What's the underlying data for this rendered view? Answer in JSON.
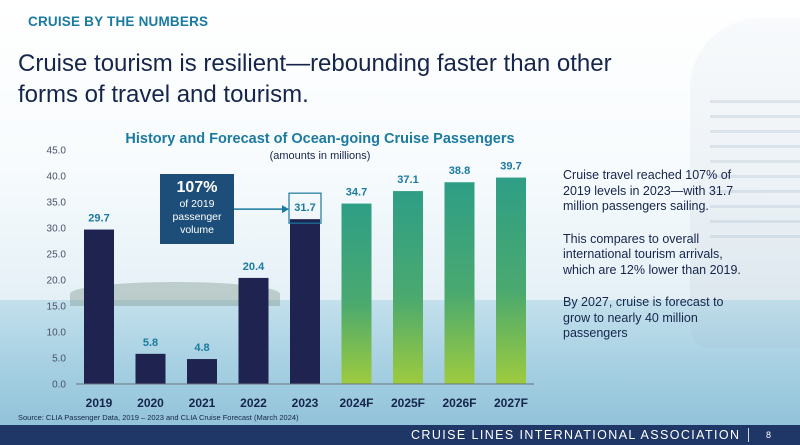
{
  "kicker": "CRUISE BY THE NUMBERS",
  "headline": "Cruise tourism is resilient—rebounding faster than other forms of travel and tourism.",
  "callout": {
    "percent": "107%",
    "line1": "of 2019",
    "line2": "passenger",
    "line3": "volume"
  },
  "side_notes": [
    "Cruise travel reached 107% of 2019 levels in 2023—with 31.7 million passengers sailing.",
    "This compares to overall international tourism arrivals, which are 12% lower than 2019.",
    "By 2027, cruise is forecast to grow to nearly 40 million passengers"
  ],
  "source": "Source: CLIA Passenger Data, 2019 – 2023 and CLIA Cruise Forecast (March 2024)",
  "footer": {
    "org": "CRUISE LINES INTERNATIONAL ASSOCIATION",
    "page": "8"
  },
  "colors": {
    "navy": "#16254b",
    "teal": "#1a7aa0",
    "bar_historic": "#1e2350",
    "callout_bg": "#1d4e79",
    "gradient_top": "#2e9e86",
    "gradient_mid": "#4aa96f",
    "gradient_bottom": "#9ecb3e",
    "footer_bg": "#1f3766"
  },
  "chart_data": {
    "type": "bar",
    "title": "History and Forecast of Ocean-going Cruise Passengers",
    "subtitle": "(amounts in millions)",
    "categories": [
      "2019",
      "2020",
      "2021",
      "2022",
      "2023",
      "2024F",
      "2025F",
      "2026F",
      "2027F"
    ],
    "values": [
      29.7,
      5.8,
      4.8,
      20.4,
      31.7,
      34.7,
      37.1,
      38.8,
      39.7
    ],
    "value_labels": [
      "29.7",
      "5.8",
      "4.8",
      "20.4",
      "31.7",
      "34.7",
      "37.1",
      "38.8",
      "39.7"
    ],
    "forecast": [
      false,
      false,
      false,
      false,
      false,
      true,
      true,
      true,
      true
    ],
    "highlighted_category": "2023",
    "ylim": [
      0,
      45
    ],
    "yticks": [
      "0.0",
      "5.0",
      "10.0",
      "15.0",
      "20.0",
      "25.0",
      "30.0",
      "35.0",
      "40.0",
      "45.0"
    ],
    "grid": false,
    "legend": false
  }
}
